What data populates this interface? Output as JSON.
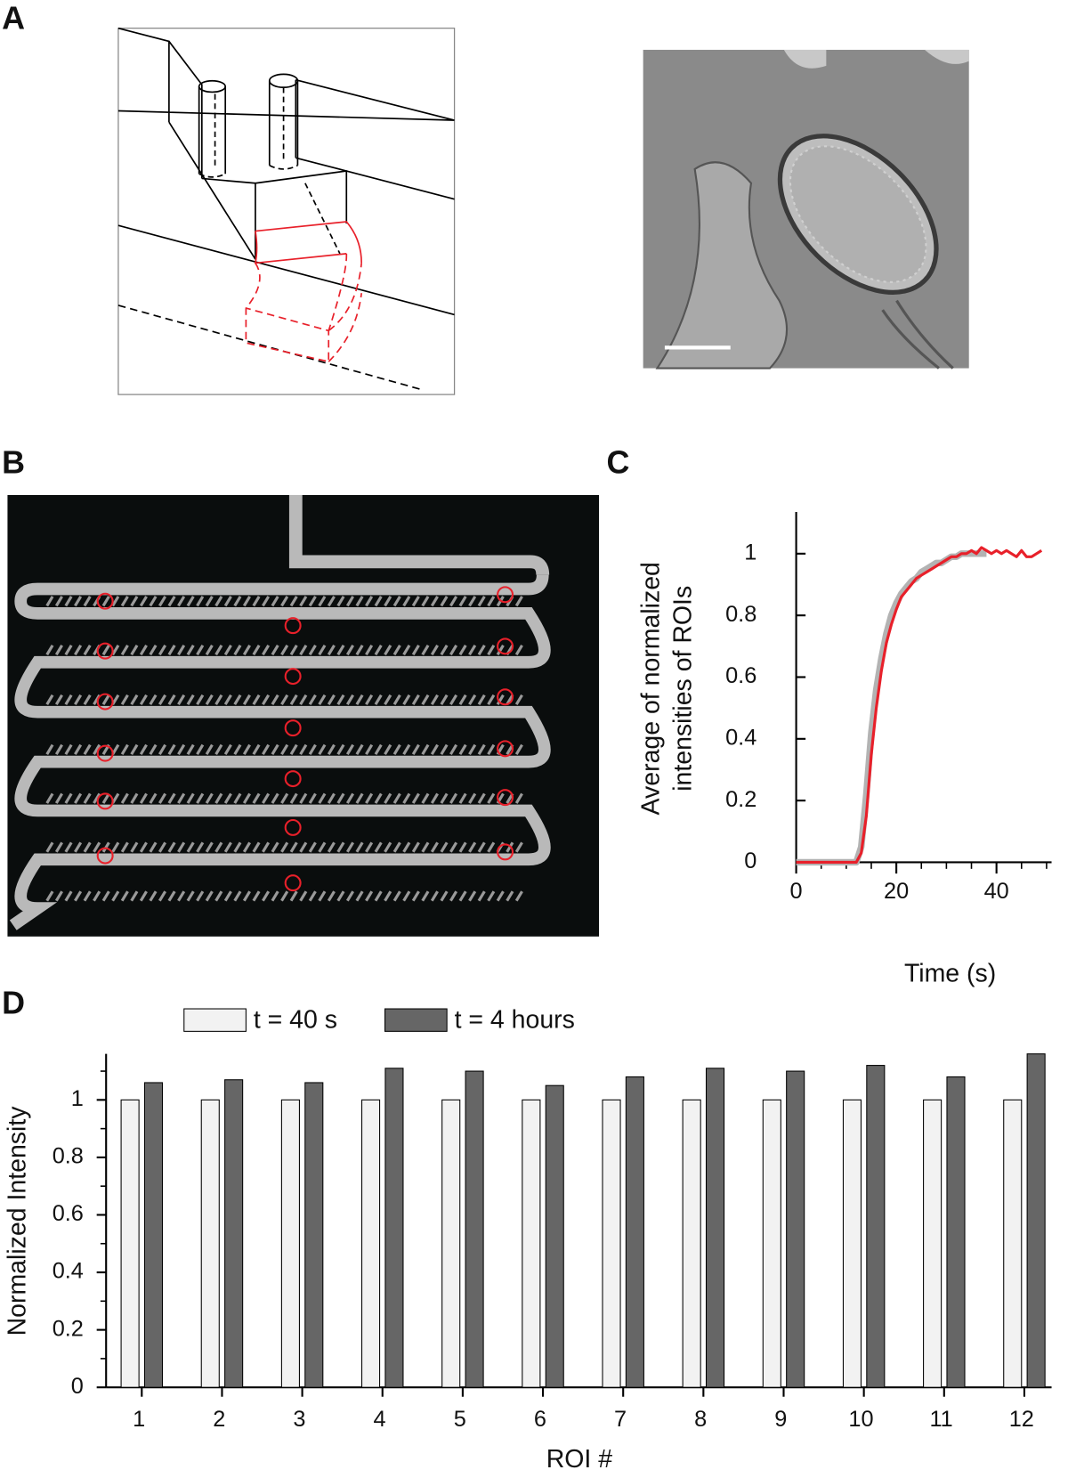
{
  "panels": [
    "A",
    "B",
    "C",
    "D"
  ],
  "chart_data": [
    {
      "type": "line",
      "xlabel": "Time (s)",
      "ylabel": [
        "Average of normalized",
        "intensities of ROIs"
      ],
      "x": [
        0,
        1,
        2,
        3,
        4,
        5,
        6,
        7,
        8,
        9,
        10,
        11,
        12,
        13,
        14,
        15,
        16,
        17,
        18,
        19,
        20,
        21,
        22,
        23,
        24,
        25,
        26,
        27,
        28,
        29,
        30,
        31,
        32,
        33,
        34,
        35,
        36,
        37,
        38,
        39,
        40,
        41,
        42,
        43,
        44,
        45,
        46,
        47,
        48,
        49
      ],
      "series": [
        {
          "color": "#b3b3b3",
          "values": [
            0,
            0,
            0,
            0,
            0,
            0,
            0,
            0,
            0,
            0,
            0,
            0,
            0,
            0.05,
            0.22,
            0.42,
            0.56,
            0.66,
            0.74,
            0.8,
            0.84,
            0.87,
            0.89,
            0.91,
            0.92,
            0.94,
            0.95,
            0.96,
            0.97,
            0.97,
            0.98,
            0.99,
            0.99,
            1.0,
            1.0,
            1.0,
            1.0,
            1.0,
            1.0,
            null,
            null,
            null,
            null,
            null,
            null,
            null,
            null,
            null,
            null,
            null
          ]
        },
        {
          "color": "#e8202a",
          "values": [
            0,
            0,
            0,
            0,
            0,
            0,
            0,
            0,
            0,
            0,
            0,
            0,
            0,
            0.03,
            0.15,
            0.35,
            0.5,
            0.62,
            0.71,
            0.77,
            0.82,
            0.86,
            0.88,
            0.9,
            0.92,
            0.93,
            0.94,
            0.95,
            0.96,
            0.97,
            0.98,
            0.99,
            0.99,
            1.0,
            1.0,
            1.01,
            1.0,
            1.02,
            1.01,
            1.0,
            1.01,
            1.0,
            1.01,
            1.0,
            0.99,
            1.01,
            0.99,
            0.99,
            1.0,
            1.01
          ]
        }
      ],
      "xlim": [
        0,
        51
      ],
      "xticks": [
        0,
        20,
        40
      ],
      "xminorticks": [
        5,
        10,
        15,
        25,
        30,
        35,
        45,
        50
      ],
      "ylim": [
        0,
        1.12
      ],
      "yticks": [
        0,
        0.2,
        0.4,
        0.6,
        0.8,
        1
      ]
    },
    {
      "type": "bar",
      "xlabel": "ROI #",
      "ylabel": "Normalized Intensity",
      "categories": [
        "1",
        "2",
        "3",
        "4",
        "5",
        "6",
        "7",
        "8",
        "9",
        "10",
        "11",
        "12"
      ],
      "series": [
        {
          "name": "t = 40 s",
          "color": "#f2f2f2",
          "values": [
            1,
            1,
            1,
            1,
            1,
            1,
            1,
            1,
            1,
            1,
            1,
            1
          ]
        },
        {
          "name": "t = 4 hours",
          "color": "#666666",
          "values": [
            1.06,
            1.07,
            1.06,
            1.11,
            1.1,
            1.05,
            1.08,
            1.11,
            1.1,
            1.12,
            1.08,
            1.16
          ]
        }
      ],
      "legend": "top",
      "ylim": [
        0,
        1.16
      ],
      "yticks": [
        0,
        0.2,
        0.4,
        0.6,
        0.8,
        1
      ],
      "yminorticks": [
        0.1,
        0.3,
        0.5,
        0.7,
        0.9,
        1.1
      ]
    }
  ]
}
